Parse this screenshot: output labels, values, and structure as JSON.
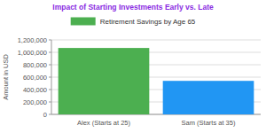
{
  "chart_data": {
    "type": "bar",
    "title": "Impact of Starting Investments Early vs. Late",
    "y_label": "Amount in USD",
    "categories": [
      "Alex (Starts at 25)",
      "Sam (Starts at 35)"
    ],
    "series": [
      {
        "name": "Retirement Savings by Age 65",
        "colors": [
          "#4caf50",
          "#2196f3"
        ],
        "values": [
          1070000,
          540000
        ]
      }
    ],
    "ylim": [
      0,
      1200000
    ],
    "yticks": [
      0,
      {
        "value": 200000,
        "label": "200,000"
      },
      {
        "value": 400000,
        "label": "400,000"
      },
      {
        "value": 600000,
        "label": "600,000"
      },
      {
        "value": 800000,
        "label": "800,000"
      },
      {
        "value": 1000000,
        "label": "1,000,000"
      },
      {
        "value": 1200000,
        "label": "1,200,000"
      }
    ],
    "grid": true,
    "legend": "top"
  }
}
